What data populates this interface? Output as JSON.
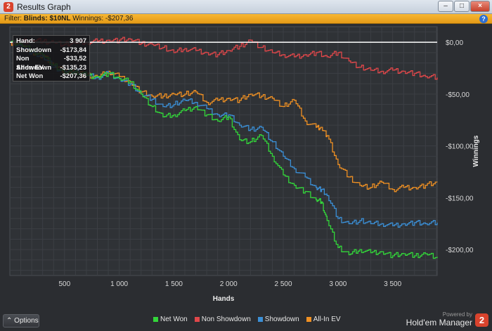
{
  "window": {
    "title": "Results Graph",
    "app_icon_text": "2",
    "minimize": "–",
    "maximize": "□",
    "close": "×"
  },
  "filter": {
    "prefix": "Filter: ",
    "blinds_label": "Blinds: $10NL",
    "winnings_text": " Winnings: -$207,36",
    "help_icon": "?"
  },
  "stats": [
    {
      "label": "Hand:",
      "value": "3 907"
    },
    {
      "label": "Showdown",
      "value": "-$173,84"
    },
    {
      "label": "Non Showdown",
      "value": "-$33,52"
    },
    {
      "label": "All-In EV",
      "value": "-$135,23"
    },
    {
      "label": "Net Won",
      "value": "-$207,36"
    }
  ],
  "bottom": {
    "options_label": "Options",
    "options_icon": "chevron-up-icon",
    "powered_by": "Powered by",
    "brand": "Hold'em Manager",
    "brand_logo": "2"
  },
  "colors": {
    "net_won": "#33d63a",
    "non_showdown": "#e0474a",
    "showdown": "#3b8fd6",
    "all_in_ev": "#ef9023",
    "zero_line": "#ffffff"
  },
  "chart_data": {
    "type": "line",
    "xlabel": "Hands",
    "ylabel": "Winnings",
    "xlim": [
      0,
      3907
    ],
    "ylim": [
      -225,
      15
    ],
    "x_ticks": [
      500,
      1000,
      1500,
      2000,
      2500,
      3000,
      3500
    ],
    "x_tick_labels": [
      "500",
      "1 000",
      "1 500",
      "2 000",
      "2 500",
      "3 000",
      "3 500"
    ],
    "y_ticks": [
      0,
      -50,
      -100,
      -150,
      -200
    ],
    "y_tick_labels": [
      "$0,00",
      "-$50,00",
      "-$100,00",
      "-$150,00",
      "-$200,00"
    ],
    "grid": true,
    "legend_position": "bottom",
    "series": [
      {
        "name": "Net Won",
        "x": [
          0,
          100,
          200,
          300,
          400,
          500,
          600,
          700,
          800,
          900,
          1000,
          1100,
          1200,
          1300,
          1400,
          1500,
          1600,
          1700,
          1800,
          1900,
          2000,
          2100,
          2200,
          2300,
          2400,
          2500,
          2600,
          2700,
          2800,
          2850,
          2900,
          3000,
          3100,
          3200,
          3300,
          3400,
          3500,
          3600,
          3700,
          3800,
          3907
        ],
        "y": [
          0,
          -2,
          -8,
          -12,
          -22,
          -30,
          -28,
          -32,
          -33,
          -30,
          -35,
          -38,
          -50,
          -62,
          -72,
          -70,
          -66,
          -62,
          -70,
          -76,
          -72,
          -94,
          -96,
          -90,
          -110,
          -128,
          -138,
          -144,
          -152,
          -154,
          -172,
          -198,
          -205,
          -200,
          -203,
          -202,
          -206,
          -204,
          -206,
          -204,
          -207
        ]
      },
      {
        "name": "Non Showdown",
        "x": [
          0,
          100,
          200,
          300,
          400,
          500,
          600,
          700,
          800,
          900,
          1000,
          1100,
          1200,
          1300,
          1400,
          1500,
          1600,
          1700,
          1800,
          1900,
          2000,
          2100,
          2200,
          2300,
          2400,
          2500,
          2600,
          2700,
          2800,
          2900,
          3000,
          3100,
          3200,
          3300,
          3400,
          3500,
          3600,
          3700,
          3800,
          3907
        ],
        "y": [
          0,
          0,
          2,
          1,
          0,
          -2,
          -1,
          0,
          1,
          2,
          2,
          3,
          -1,
          -2,
          -5,
          -10,
          -6,
          -8,
          -10,
          -12,
          -8,
          -4,
          2,
          -5,
          -10,
          -12,
          -14,
          -12,
          -10,
          -14,
          -10,
          -18,
          -24,
          -27,
          -28,
          -27,
          -28,
          -30,
          -33,
          -34
        ]
      },
      {
        "name": "Showdown",
        "x": [
          0,
          100,
          200,
          300,
          400,
          500,
          600,
          700,
          800,
          900,
          1000,
          1100,
          1200,
          1300,
          1400,
          1500,
          1600,
          1700,
          1800,
          1900,
          2000,
          2100,
          2200,
          2300,
          2400,
          2500,
          2600,
          2700,
          2800,
          2850,
          2900,
          3000,
          3100,
          3200,
          3300,
          3400,
          3500,
          3600,
          3700,
          3800,
          3907
        ],
        "y": [
          0,
          -3,
          -10,
          -14,
          -24,
          -28,
          -27,
          -32,
          -34,
          -30,
          -35,
          -40,
          -50,
          -55,
          -62,
          -60,
          -56,
          -58,
          -64,
          -70,
          -70,
          -80,
          -84,
          -82,
          -96,
          -110,
          -122,
          -130,
          -140,
          -142,
          -148,
          -170,
          -175,
          -172,
          -175,
          -175,
          -177,
          -175,
          -174,
          -175,
          -174
        ]
      },
      {
        "name": "All-In EV",
        "x": [
          0,
          100,
          200,
          300,
          400,
          500,
          600,
          700,
          800,
          900,
          1000,
          1100,
          1200,
          1300,
          1400,
          1500,
          1600,
          1700,
          1800,
          1900,
          2000,
          2100,
          2200,
          2300,
          2400,
          2500,
          2600,
          2700,
          2800,
          2850,
          2900,
          3000,
          3100,
          3200,
          3300,
          3400,
          3500,
          3600,
          3700,
          3800,
          3907
        ],
        "y": [
          0,
          -3,
          -10,
          -13,
          -22,
          -28,
          -28,
          -32,
          -34,
          -28,
          -33,
          -38,
          -48,
          -52,
          -52,
          -50,
          -50,
          -48,
          -58,
          -56,
          -54,
          -56,
          -50,
          -52,
          -54,
          -62,
          -56,
          -76,
          -82,
          -82,
          -90,
          -118,
          -130,
          -138,
          -140,
          -135,
          -142,
          -140,
          -140,
          -138,
          -135
        ]
      }
    ]
  }
}
